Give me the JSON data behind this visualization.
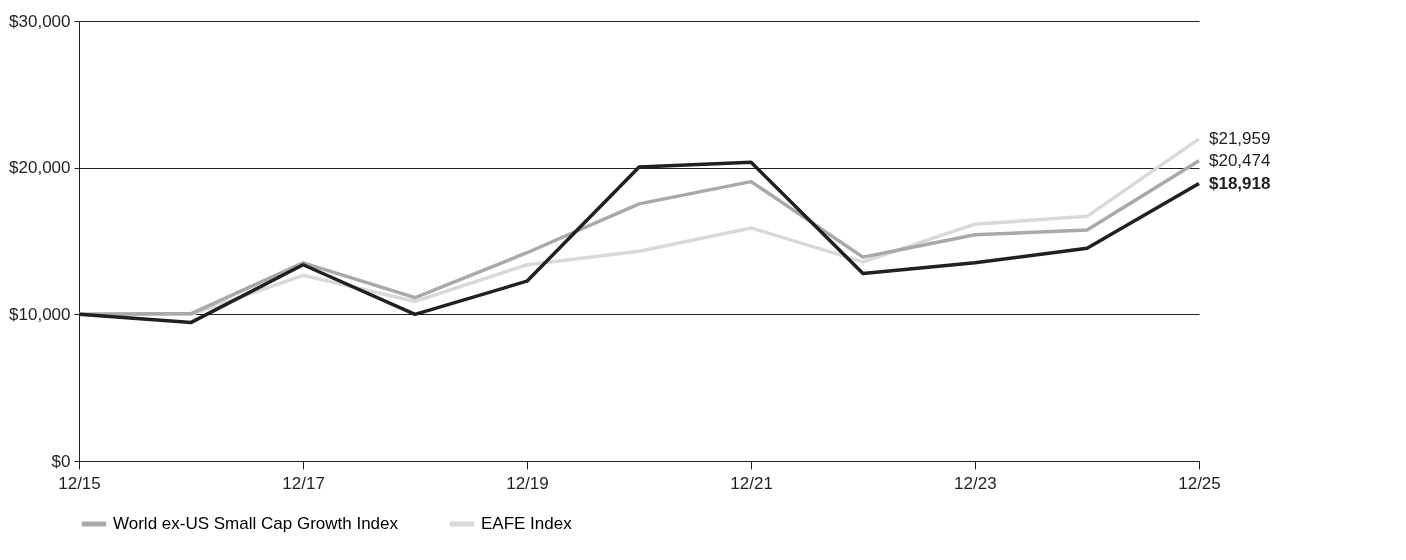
{
  "chart_data": {
    "type": "line",
    "x": [
      "2015-12",
      "2016-12",
      "2017-12",
      "2018-12",
      "2019-12",
      "2020-12",
      "2021-12",
      "2022-12",
      "2023-12",
      "2024-12",
      "2025-12"
    ],
    "xticks": [
      {
        "value": "2015-12",
        "label": "12/15"
      },
      {
        "value": "2017-12",
        "label": "12/17"
      },
      {
        "value": "2019-12",
        "label": "12/19"
      },
      {
        "value": "2021-12",
        "label": "12/21"
      },
      {
        "value": "2023-12",
        "label": "12/23"
      },
      {
        "value": "2025-12",
        "label": "12/25"
      }
    ],
    "xlim": [
      "2015-12",
      "2025-12"
    ],
    "ylim": [
      0,
      30000
    ],
    "yticks": [
      {
        "value": 0,
        "label": "$0"
      },
      {
        "value": 10000,
        "label": "$10,000"
      },
      {
        "value": 20000,
        "label": "$20,000"
      },
      {
        "value": 30000,
        "label": "$30,000"
      }
    ],
    "grid": "y",
    "legend": "bottom",
    "line_style": "solid",
    "marker": "none",
    "series": [
      {
        "color": "#231f20",
        "values": [
          10000,
          9450,
          13380,
          10000,
          12260,
          20040,
          20370,
          12790,
          13510,
          14500,
          18918
        ],
        "value_labels": [
          null,
          null,
          null,
          null,
          null,
          null,
          null,
          null,
          null,
          null,
          "$18,918"
        ]
      },
      {
        "name": "World ex-US Small Cap Growth Index",
        "color": "#a7a9ac",
        "values": [
          10000,
          10050,
          13510,
          11140,
          14200,
          17530,
          19050,
          13900,
          15420,
          15750,
          20474
        ],
        "value_labels": [
          null,
          null,
          null,
          null,
          null,
          null,
          null,
          null,
          null,
          null,
          "$20,474"
        ]
      },
      {
        "name": "EAFE Index",
        "color": "#d9d9da",
        "values": [
          10000,
          10000,
          12660,
          10880,
          13380,
          14300,
          15890,
          13580,
          16150,
          16680,
          21959
        ],
        "value_labels": [
          null,
          null,
          null,
          null,
          null,
          null,
          null,
          null,
          null,
          null,
          "$21,959"
        ]
      }
    ]
  }
}
